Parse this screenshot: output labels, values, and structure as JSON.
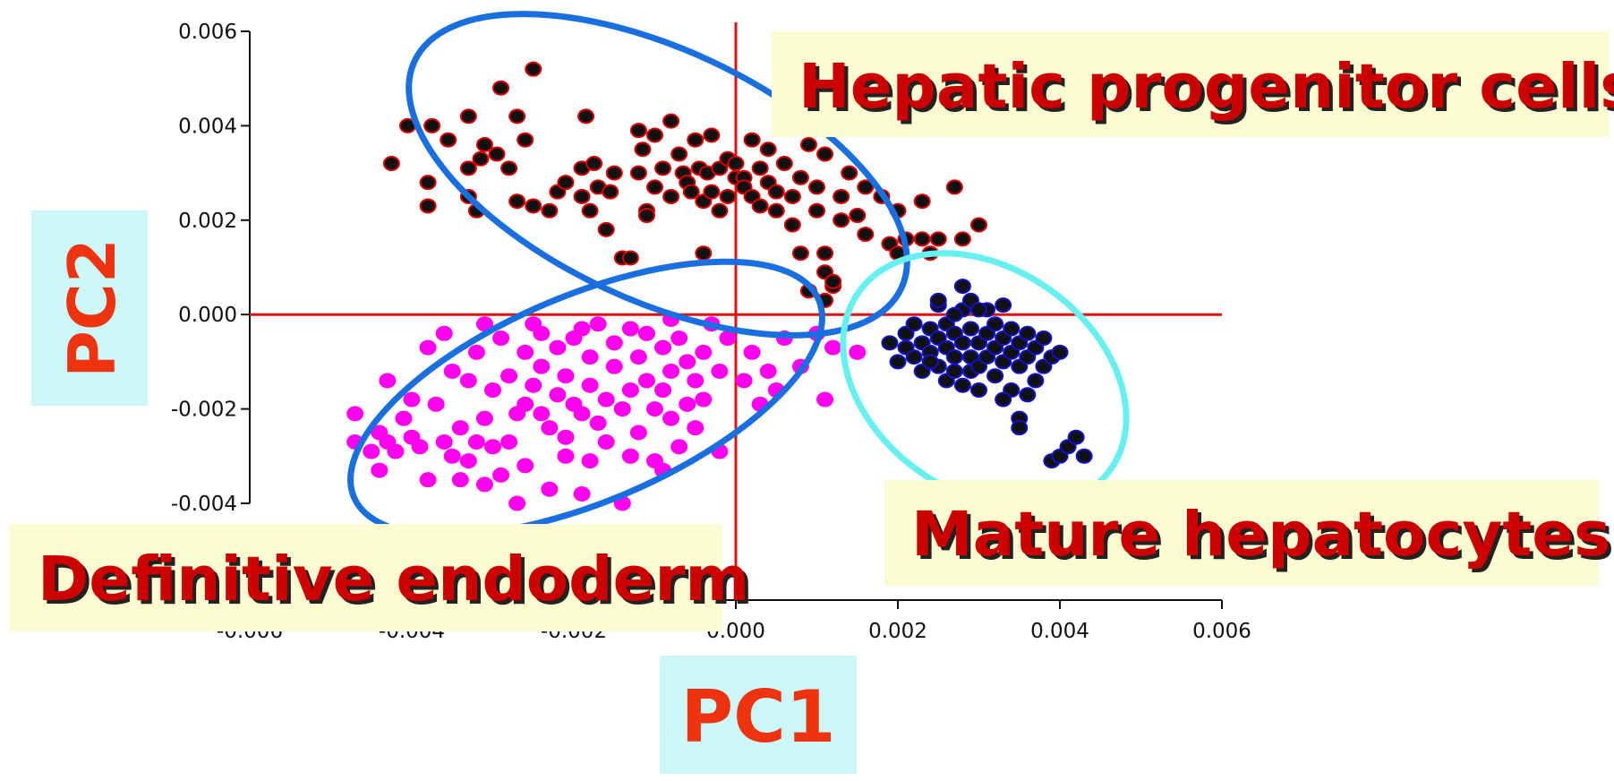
{
  "chart_data": {
    "type": "scatter",
    "title": "",
    "xlabel": "PC1",
    "ylabel": "PC2",
    "xlim": [
      -0.006,
      0.006
    ],
    "ylim": [
      -0.004,
      0.006
    ],
    "x_ticks": [
      "-0.006",
      "-0.004",
      "-0.002",
      "0.000",
      "0.002",
      "0.004",
      "0.006"
    ],
    "y_ticks": [
      "0.006",
      "0.004",
      "0.002",
      "0.000",
      "-0.002",
      "-0.004"
    ],
    "grid": false,
    "annotations": [
      "Hepatic progenitor cells",
      "Mature hepatocytes",
      "Definitive endoderm"
    ],
    "colors": {
      "axis_cross": "#dd1111",
      "ellipse_blue": "#1a6fe0",
      "ellipse_cyan": "#66f0f0",
      "label_box": "#fcfcd2",
      "axis_label_box": "#ccf8f8",
      "axis_title": "#ee3311",
      "group_text": "#cc0000"
    },
    "series": [
      {
        "color": "#111111",
        "edge": "#dd0000",
        "points": [
          [
            -0.00425,
            0.0032
          ],
          [
            -0.00405,
            0.004
          ],
          [
            -0.00375,
            0.004
          ],
          [
            -0.0038,
            0.0028
          ],
          [
            -0.0038,
            0.0023
          ],
          [
            -0.00355,
            0.0037
          ],
          [
            -0.0033,
            0.0042
          ],
          [
            -0.0033,
            0.0031
          ],
          [
            -0.0033,
            0.0025
          ],
          [
            -0.0032,
            0.0022
          ],
          [
            -0.00315,
            0.0033
          ],
          [
            -0.0031,
            0.0036
          ],
          [
            -0.00295,
            0.0034
          ],
          [
            -0.0029,
            0.0048
          ],
          [
            -0.0028,
            0.0031
          ],
          [
            -0.0027,
            0.0024
          ],
          [
            -0.0027,
            0.0042
          ],
          [
            -0.0026,
            0.0037
          ],
          [
            -0.0025,
            0.0023
          ],
          [
            -0.0025,
            0.0052
          ],
          [
            -0.0023,
            0.0022
          ],
          [
            -0.0022,
            0.0026
          ],
          [
            -0.0021,
            0.0028
          ],
          [
            -0.0019,
            0.0031
          ],
          [
            -0.0019,
            0.0025
          ],
          [
            -0.00185,
            0.0042
          ],
          [
            -0.0018,
            0.0022
          ],
          [
            -0.00175,
            0.0032
          ],
          [
            -0.0017,
            0.0027
          ],
          [
            -0.0016,
            0.0018
          ],
          [
            -0.00155,
            0.0026
          ],
          [
            -0.0015,
            0.003
          ],
          [
            -0.0014,
            0.0012
          ],
          [
            -0.0013,
            0.0012
          ],
          [
            -0.0012,
            0.0039
          ],
          [
            -0.0012,
            0.003
          ],
          [
            -0.00115,
            0.0035
          ],
          [
            -0.0011,
            0.0022
          ],
          [
            -0.0011,
            0.0021
          ],
          [
            -0.001,
            0.0027
          ],
          [
            -0.001,
            0.0038
          ],
          [
            -0.0009,
            0.0031
          ],
          [
            -0.0008,
            0.0025
          ],
          [
            -0.0008,
            0.0041
          ],
          [
            -0.0007,
            0.0034
          ],
          [
            -0.00065,
            0.003
          ],
          [
            -0.0006,
            0.0028
          ],
          [
            -0.00055,
            0.0026
          ],
          [
            -0.0005,
            0.0037
          ],
          [
            -0.00045,
            0.0031
          ],
          [
            -0.0004,
            0.0013
          ],
          [
            -0.0004,
            0.0024
          ],
          [
            -0.00035,
            0.003
          ],
          [
            -0.0003,
            0.0038
          ],
          [
            -0.0003,
            0.0026
          ],
          [
            -0.0002,
            0.0031
          ],
          [
            -0.0002,
            0.0022
          ],
          [
            -0.0001,
            0.0033
          ],
          [
            -0.0001,
            0.0025
          ],
          [
            0.0,
            0.0029
          ],
          [
            0.0,
            0.0032
          ],
          [
            0.0001,
            0.0029
          ],
          [
            0.0001,
            0.0027
          ],
          [
            0.0002,
            0.0037
          ],
          [
            0.0002,
            0.0025
          ],
          [
            0.0003,
            0.0031
          ],
          [
            0.0003,
            0.0023
          ],
          [
            0.0004,
            0.0028
          ],
          [
            0.0004,
            0.0035
          ],
          [
            0.0005,
            0.0026
          ],
          [
            0.0005,
            0.0022
          ],
          [
            0.0006,
            0.0032
          ],
          [
            0.0007,
            0.0025
          ],
          [
            0.0007,
            0.0019
          ],
          [
            0.0008,
            0.0029
          ],
          [
            0.0008,
            0.0013
          ],
          [
            0.0009,
            0.0036
          ],
          [
            0.001,
            0.0027
          ],
          [
            0.001,
            0.0022
          ],
          [
            0.0011,
            0.0034
          ],
          [
            0.0011,
            0.0013
          ],
          [
            0.0011,
            0.0009
          ],
          [
            0.0012,
            0.0006
          ],
          [
            0.0013,
            0.0025
          ],
          [
            0.0013,
            0.002
          ],
          [
            0.0014,
            0.003
          ],
          [
            0.0015,
            0.0021
          ],
          [
            0.0016,
            0.0027
          ],
          [
            0.0016,
            0.0017
          ],
          [
            0.0018,
            0.0025
          ],
          [
            0.0019,
            0.0015
          ],
          [
            0.002,
            0.0022
          ],
          [
            0.002,
            0.0013
          ],
          [
            0.0021,
            0.0016
          ],
          [
            0.0023,
            0.0024
          ],
          [
            0.0023,
            0.0016
          ],
          [
            0.0024,
            0.0013
          ],
          [
            0.0025,
            0.0016
          ],
          [
            0.0027,
            0.0027
          ],
          [
            0.0028,
            0.0016
          ],
          [
            0.003,
            0.0019
          ],
          [
            0.0012,
            0.0007
          ],
          [
            0.0009,
            0.0005
          ],
          [
            0.0011,
            0.0003
          ]
        ]
      },
      {
        "color": "#ff00ee",
        "edge": "#ff00ee",
        "points": [
          [
            -0.0047,
            -0.0021
          ],
          [
            -0.0045,
            -0.0029
          ],
          [
            -0.0044,
            -0.0033
          ],
          [
            -0.0044,
            -0.0025
          ],
          [
            -0.0043,
            -0.0027
          ],
          [
            -0.0042,
            -0.0029
          ],
          [
            -0.0041,
            -0.0022
          ],
          [
            -0.004,
            -0.0026
          ],
          [
            -0.004,
            -0.0018
          ],
          [
            -0.0039,
            -0.0028
          ],
          [
            -0.0038,
            -0.0035
          ],
          [
            -0.0037,
            -0.0019
          ],
          [
            -0.0036,
            -0.0027
          ],
          [
            -0.0035,
            -0.003
          ],
          [
            -0.0035,
            -0.0012
          ],
          [
            -0.0034,
            -0.0035
          ],
          [
            -0.0034,
            -0.0024
          ],
          [
            -0.0033,
            -0.0014
          ],
          [
            -0.0032,
            -0.0027
          ],
          [
            -0.0032,
            -0.0008
          ],
          [
            -0.0031,
            -0.0036
          ],
          [
            -0.0031,
            -0.0022
          ],
          [
            -0.003,
            -0.0028
          ],
          [
            -0.003,
            -0.0016
          ],
          [
            -0.0029,
            -0.0005
          ],
          [
            -0.0028,
            -0.0027
          ],
          [
            -0.0028,
            -0.0013
          ],
          [
            -0.0027,
            -0.0021
          ],
          [
            -0.0027,
            -0.004
          ],
          [
            -0.0026,
            -0.0019
          ],
          [
            -0.0026,
            -0.0008
          ],
          [
            -0.0025,
            -0.0002
          ],
          [
            -0.0025,
            -0.0015
          ],
          [
            -0.0024,
            -0.0021
          ],
          [
            -0.0024,
            -0.0011
          ],
          [
            -0.0023,
            -0.0037
          ],
          [
            -0.0023,
            -0.0024
          ],
          [
            -0.0022,
            -0.0007
          ],
          [
            -0.0022,
            -0.0017
          ],
          [
            -0.0021,
            -0.0013
          ],
          [
            -0.0021,
            -0.0026
          ],
          [
            -0.002,
            -0.0005
          ],
          [
            -0.002,
            -0.0019
          ],
          [
            -0.0019,
            -0.0021
          ],
          [
            -0.0019,
            -0.0038
          ],
          [
            -0.0018,
            -0.0015
          ],
          [
            -0.0018,
            -0.0009
          ],
          [
            -0.0017,
            -0.0023
          ],
          [
            -0.0017,
            -0.0002
          ],
          [
            -0.0016,
            -0.0018
          ],
          [
            -0.0016,
            -0.0027
          ],
          [
            -0.0015,
            -0.0011
          ],
          [
            -0.0015,
            -0.0006
          ],
          [
            -0.0014,
            -0.002
          ],
          [
            -0.0014,
            -0.004
          ],
          [
            -0.0013,
            -0.0016
          ],
          [
            -0.0012,
            -0.0009
          ],
          [
            -0.0012,
            -0.0025
          ],
          [
            -0.0011,
            -0.0014
          ],
          [
            -0.0011,
            -0.0004
          ],
          [
            -0.001,
            -0.002
          ],
          [
            -0.001,
            -0.0031
          ],
          [
            -0.0009,
            -0.0007
          ],
          [
            -0.0009,
            -0.0016
          ],
          [
            -0.0008,
            -0.0022
          ],
          [
            -0.0008,
            -0.0012
          ],
          [
            -0.0007,
            -0.0028
          ],
          [
            -0.0007,
            -0.0005
          ],
          [
            -0.0006,
            -0.0019
          ],
          [
            -0.0006,
            -0.001
          ],
          [
            -0.0005,
            -0.0014
          ],
          [
            -0.0004,
            -0.0008
          ],
          [
            -0.0004,
            -0.0018
          ],
          [
            -0.0003,
            -0.0002
          ],
          [
            -0.0002,
            -0.0012
          ],
          [
            -0.0002,
            -0.0029
          ],
          [
            -0.0001,
            -0.0005
          ],
          [
            0.0001,
            -0.0014
          ],
          [
            0.0002,
            -0.0008
          ],
          [
            0.0003,
            -0.0019
          ],
          [
            0.0004,
            -0.0012
          ],
          [
            0.0005,
            -0.0016
          ],
          [
            0.0006,
            -0.0005
          ],
          [
            0.0008,
            -0.0011
          ],
          [
            0.001,
            -0.0004
          ],
          [
            0.0011,
            -0.0018
          ],
          [
            0.0012,
            -0.0007
          ],
          [
            0.0015,
            -0.0008
          ],
          [
            -0.0036,
            -0.0004
          ],
          [
            -0.0033,
            -0.0031
          ],
          [
            -0.0029,
            -0.0034
          ],
          [
            -0.0026,
            -0.0032
          ],
          [
            -0.0021,
            -0.003
          ],
          [
            -0.0018,
            -0.0031
          ],
          [
            -0.0013,
            -0.003
          ],
          [
            -0.0009,
            -0.0033
          ],
          [
            -0.0005,
            -0.0024
          ],
          [
            -0.0047,
            -0.0027
          ],
          [
            -0.0043,
            -0.0014
          ],
          [
            -0.0038,
            -0.0007
          ],
          [
            -0.0031,
            -0.0002
          ],
          [
            -0.0024,
            -0.0004
          ],
          [
            -0.0019,
            -0.0003
          ],
          [
            -0.0013,
            -0.0003
          ],
          [
            -0.0008,
            -0.0001
          ]
        ]
      },
      {
        "color": "#111111",
        "edge": "#1111cc",
        "points": [
          [
            0.0019,
            -0.0006
          ],
          [
            0.002,
            -0.001
          ],
          [
            0.0021,
            -0.0007
          ],
          [
            0.0021,
            -0.0004
          ],
          [
            0.0022,
            -0.0002
          ],
          [
            0.0022,
            -0.0009
          ],
          [
            0.0023,
            -0.0006
          ],
          [
            0.0023,
            -0.0012
          ],
          [
            0.0024,
            -0.0003
          ],
          [
            0.0024,
            -0.0008
          ],
          [
            0.0025,
            0.0002
          ],
          [
            0.0025,
            -0.0005
          ],
          [
            0.0025,
            -0.0011
          ],
          [
            0.0026,
            -0.0007
          ],
          [
            0.0026,
            -0.0014
          ],
          [
            0.0026,
            -0.0002
          ],
          [
            0.0027,
            -0.0009
          ],
          [
            0.0027,
            -0.0004
          ],
          [
            0.0027,
            -0.0012
          ],
          [
            0.0028,
            0.0006
          ],
          [
            0.0028,
            -0.0006
          ],
          [
            0.0028,
            -0.0015
          ],
          [
            0.0028,
            0.0001
          ],
          [
            0.0029,
            -0.0009
          ],
          [
            0.0029,
            -0.0003
          ],
          [
            0.0029,
            -0.0012
          ],
          [
            0.0029,
            0.0003
          ],
          [
            0.003,
            -0.0006
          ],
          [
            0.003,
            -0.0011
          ],
          [
            0.003,
            -0.0016
          ],
          [
            0.0031,
            -0.0004
          ],
          [
            0.0031,
            -0.0009
          ],
          [
            0.0031,
            0.0001
          ],
          [
            0.0032,
            -0.0007
          ],
          [
            0.0032,
            -0.0013
          ],
          [
            0.0032,
            -0.0002
          ],
          [
            0.0033,
            -0.0005
          ],
          [
            0.0033,
            -0.001
          ],
          [
            0.0033,
            0.0002
          ],
          [
            0.0034,
            -0.0008
          ],
          [
            0.0034,
            -0.0016
          ],
          [
            0.0034,
            -0.0003
          ],
          [
            0.0035,
            -0.0011
          ],
          [
            0.0035,
            -0.0006
          ],
          [
            0.0035,
            -0.0022
          ],
          [
            0.0036,
            -0.0009
          ],
          [
            0.0036,
            -0.0017
          ],
          [
            0.0036,
            -0.0004
          ],
          [
            0.0037,
            -0.0007
          ],
          [
            0.0037,
            -0.0014
          ],
          [
            0.0038,
            -0.0011
          ],
          [
            0.0038,
            -0.0005
          ],
          [
            0.0039,
            -0.0009
          ],
          [
            0.004,
            -0.0008
          ],
          [
            0.0039,
            -0.0031
          ],
          [
            0.004,
            -0.003
          ],
          [
            0.0041,
            -0.0028
          ],
          [
            0.0042,
            -0.0026
          ],
          [
            0.0043,
            -0.003
          ],
          [
            0.0035,
            -0.0024
          ],
          [
            0.0033,
            -0.0018
          ],
          [
            0.0024,
            -0.001
          ],
          [
            0.0025,
            0.0003
          ],
          [
            0.0027,
            0.0
          ],
          [
            0.003,
            0.0001
          ]
        ]
      }
    ]
  }
}
